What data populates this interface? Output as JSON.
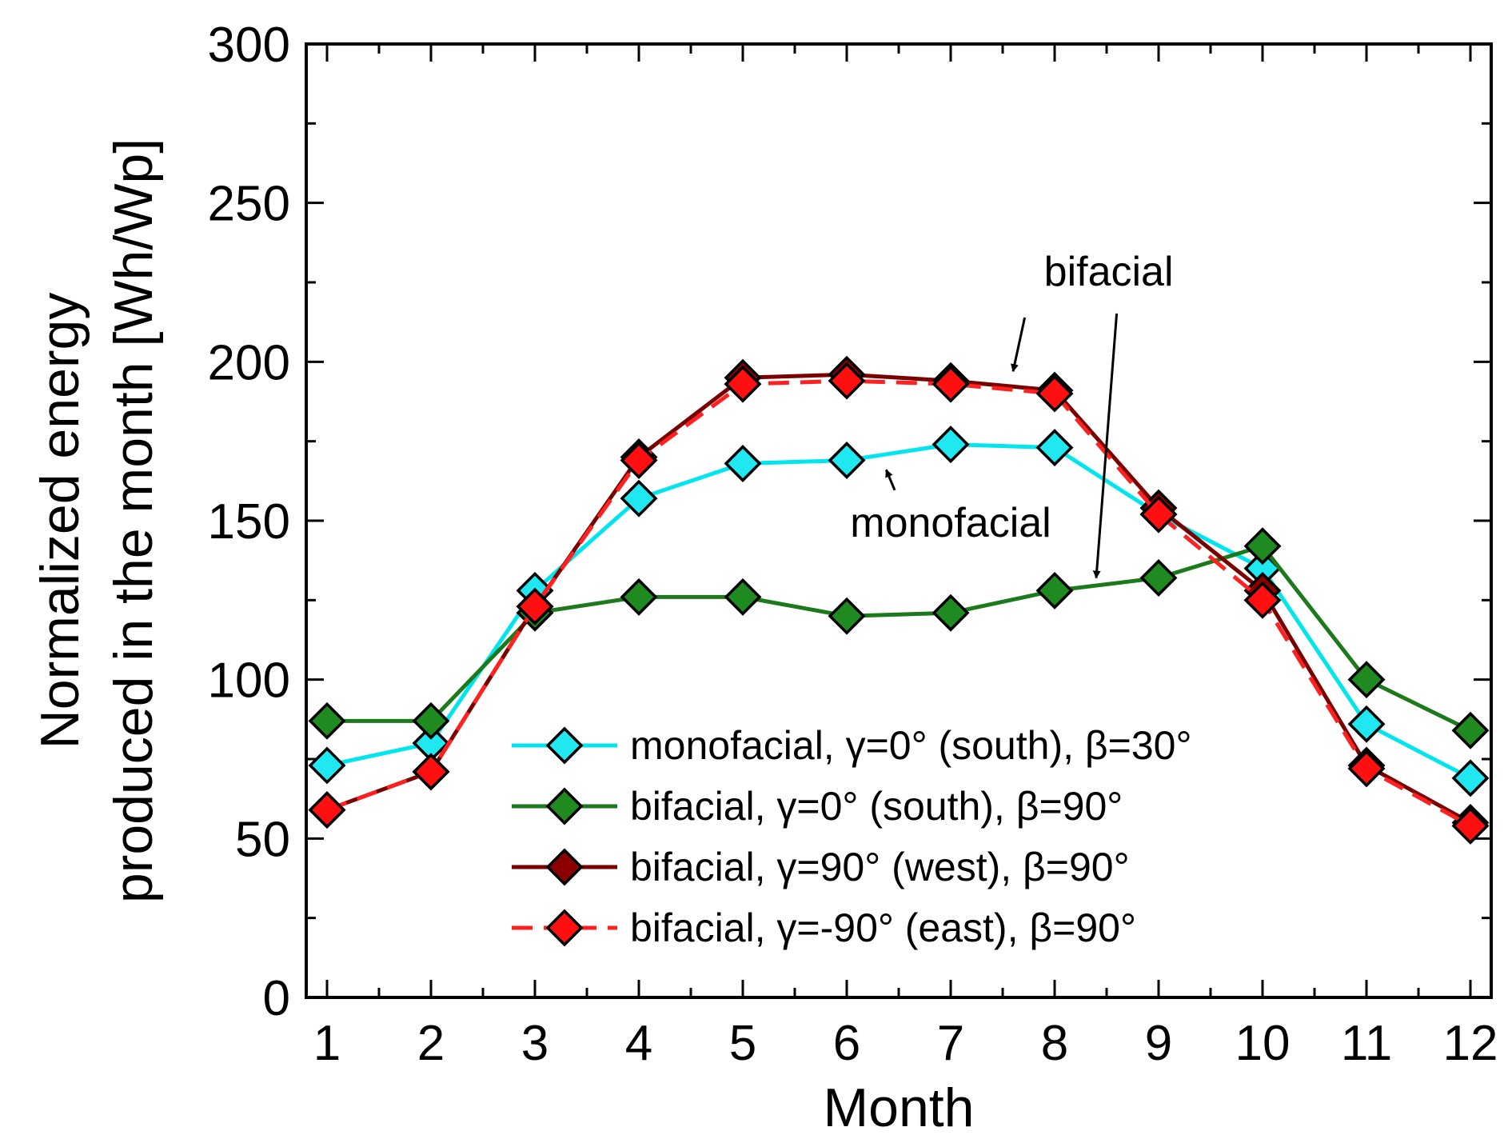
{
  "chart_data": {
    "type": "line",
    "title": "",
    "xlabel": "Month",
    "ylabel_line1": "Normalized energy",
    "ylabel_line2": "produced in the month [Wh/Wp]",
    "x": [
      1,
      2,
      3,
      4,
      5,
      6,
      7,
      8,
      9,
      10,
      11,
      12
    ],
    "xlim": [
      0.8,
      12.2
    ],
    "ylim": [
      0,
      300
    ],
    "xticks": [
      1,
      2,
      3,
      4,
      5,
      6,
      7,
      8,
      9,
      10,
      11,
      12
    ],
    "yticks": [
      0,
      50,
      100,
      150,
      200,
      250,
      300
    ],
    "grid": false,
    "legend_position": "bottom-center",
    "series": [
      {
        "name": "monofacial, γ=0° (south),  β=30°",
        "color": "#00e5ee",
        "marker_color": "#20e8f0",
        "dash": "solid",
        "values": [
          73,
          80,
          128,
          157,
          168,
          169,
          174,
          173,
          152,
          135,
          86,
          69
        ]
      },
      {
        "name": "bifacial, γ=0° (south),  β=90°",
        "color": "#1c7a1c",
        "marker_color": "#1f8a1f",
        "dash": "solid",
        "values": [
          87,
          87,
          121,
          126,
          126,
          120,
          121,
          128,
          132,
          142,
          100,
          84
        ]
      },
      {
        "name": "bifacial, γ=90° (west),  β=90°",
        "color": "#7a0000",
        "marker_color": "#8b0000",
        "dash": "solid",
        "values": [
          59,
          71,
          123,
          170,
          195,
          196,
          194,
          191,
          154,
          128,
          73,
          55
        ]
      },
      {
        "name": "bifacial, γ=-90° (east),  β=90°",
        "color": "#ff2020",
        "marker_color": "#ff1010",
        "dash": "dashed",
        "values": [
          59,
          71,
          123,
          169,
          193,
          194,
          193,
          190,
          152,
          125,
          72,
          54
        ]
      }
    ],
    "annotations": [
      {
        "text": "bifacial",
        "x": 8.52,
        "y": 224,
        "arrows": [
          {
            "x": 7.6,
            "y": 197
          },
          {
            "x": 8.4,
            "y": 132
          }
        ]
      },
      {
        "text": "monofacial",
        "x": 7.0,
        "y": 145,
        "arrows": [
          {
            "x": 6.38,
            "y": 166
          }
        ]
      }
    ]
  }
}
